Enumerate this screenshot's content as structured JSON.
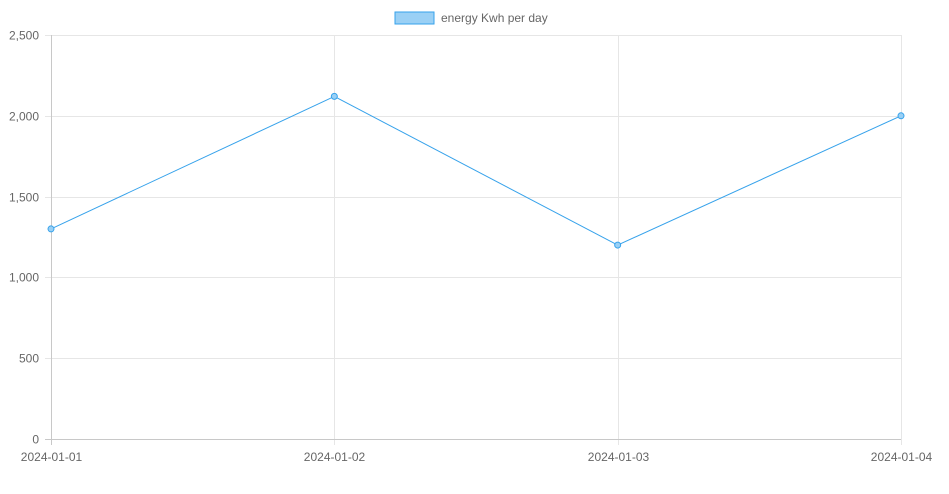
{
  "chart_data": {
    "type": "line",
    "categories": [
      "2024-01-01",
      "2024-01-02",
      "2024-01-03",
      "2024-01-04"
    ],
    "series": [
      {
        "name": "energy Kwh per day",
        "values": [
          1300,
          2120,
          1200,
          2000
        ],
        "color": "#36a2eb",
        "fill_color": "#9ad0f5"
      }
    ],
    "y_ticks": [
      "0",
      "500",
      "1,000",
      "1,500",
      "2,000",
      "2,500"
    ],
    "y_tick_values": [
      0,
      500,
      1000,
      1500,
      2000,
      2500
    ],
    "ylim": [
      0,
      2500
    ],
    "grid": true,
    "legend_position": "top-center"
  }
}
